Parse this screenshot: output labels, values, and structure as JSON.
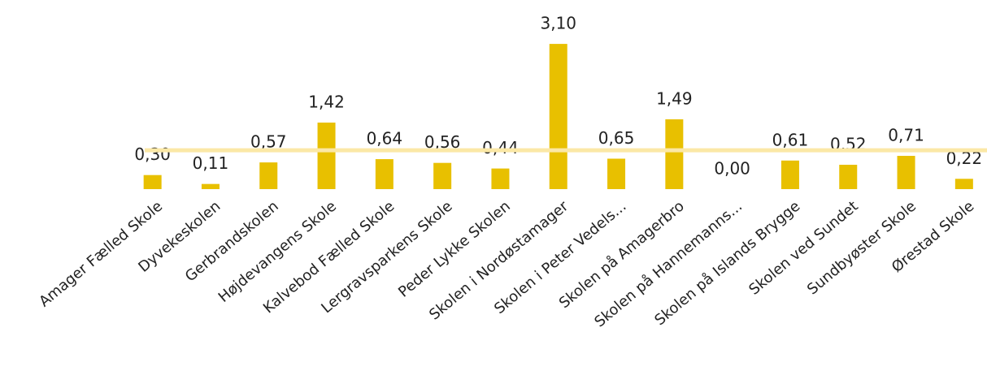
{
  "chart_data": {
    "type": "bar",
    "categories": [
      "Amager Fælled Skole",
      "Dyvekeskolen",
      "Gerbrandskolen",
      "Højdevangens Skole",
      "Kalvebod Fælled Skole",
      "Lergravsparkens Skole",
      "Peder Lykke Skolen",
      "Skolen i Nordøstamager",
      "Skolen i Peter Vedels...",
      "Skolen på Amagerbro",
      "Skolen på Hannemanns...",
      "Skolen på Islands Brygge",
      "Skolen ved Sundet",
      "Sundbyøster Skole",
      "Ørestad Skole"
    ],
    "values": [
      0.3,
      0.11,
      0.57,
      1.42,
      0.64,
      0.56,
      0.44,
      3.1,
      0.65,
      1.49,
      0.0,
      0.61,
      0.52,
      0.71,
      0.22
    ],
    "value_labels": [
      "0,30",
      "0,11",
      "0,57",
      "1,42",
      "0,64",
      "0,56",
      "0,44",
      "3,10",
      "0,65",
      "1,49",
      "0,00",
      "0,61",
      "0,52",
      "0,71",
      "0,22"
    ],
    "color": "#e8c000",
    "reference_line": 0.83,
    "reference_color": "#fbe8a6",
    "ylim": [
      0,
      3.5
    ]
  }
}
